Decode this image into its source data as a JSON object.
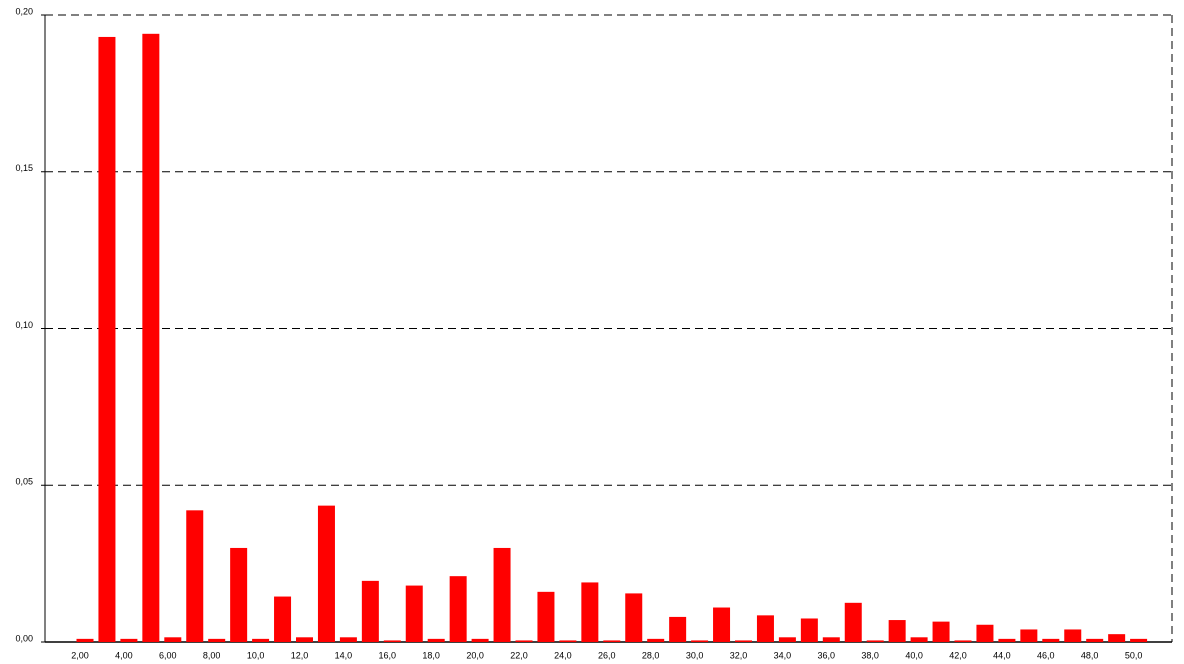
{
  "chart_data": {
    "type": "bar",
    "categories": [
      "2,00",
      null,
      "4,00",
      null,
      "6,00",
      null,
      "8,00",
      null,
      "10,0",
      null,
      "12,0",
      null,
      "14,0",
      null,
      "16,0",
      null,
      "18,0",
      null,
      "20,0",
      null,
      "22,0",
      null,
      "24,0",
      null,
      "26,0",
      null,
      "28,0",
      null,
      "30,0",
      null,
      "32,0",
      null,
      "34,0",
      null,
      "36,0",
      null,
      "38,0",
      null,
      "40,0",
      null,
      "42,0",
      null,
      "44,0",
      null,
      "46,0",
      null,
      "48,0",
      null,
      "50,0"
    ],
    "values": [
      0.001,
      0.193,
      0.001,
      0.194,
      0.0015,
      0.042,
      0.001,
      0.03,
      0.001,
      0.0145,
      0.0015,
      0.0435,
      0.0015,
      0.0195,
      0.0005,
      0.018,
      0.001,
      0.021,
      0.001,
      0.03,
      0.0005,
      0.016,
      0.0005,
      0.019,
      0.0005,
      0.0155,
      0.001,
      0.008,
      0.0005,
      0.011,
      0.0005,
      0.0085,
      0.0015,
      0.0075,
      0.0015,
      0.0125,
      0.0005,
      0.007,
      0.0015,
      0.0065,
      0.0005,
      0.0055,
      0.001,
      0.004,
      0.001,
      0.004,
      0.001,
      0.0025,
      0.001
    ],
    "color": "#ff0000",
    "ylim": [
      0,
      0.2
    ],
    "yticks": [
      {
        "value": 0,
        "label": "0,00"
      },
      {
        "value": 0.05,
        "label": "0,05"
      },
      {
        "value": 0.1,
        "label": "0,10"
      },
      {
        "value": 0.15,
        "label": "0,15"
      },
      {
        "value": 0.2,
        "label": "0,20"
      }
    ],
    "grid": true
  }
}
